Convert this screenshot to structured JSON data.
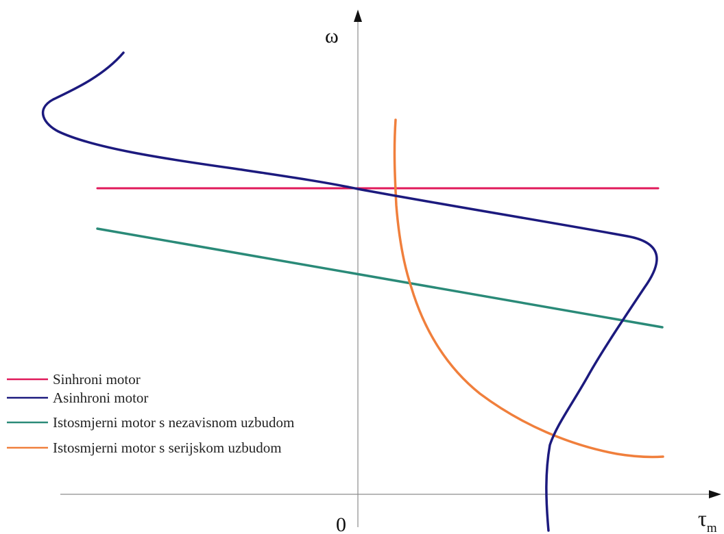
{
  "axes": {
    "y_label": "ω",
    "x_label_main": "τ",
    "x_label_sub": "m",
    "origin_label": "0"
  },
  "legend": [
    {
      "label": "Sinhroni motor",
      "color": "#e0195a"
    },
    {
      "label": "Asinhroni motor",
      "color": "#1c1a7e"
    },
    {
      "label": "Istosmjerni motor s nezavisnom uzbudom",
      "color": "#2a8a78"
    },
    {
      "label": "Istosmjerni motor s serijskom uzbudom",
      "color": "#f07f3c"
    }
  ],
  "colors": {
    "axis": "#8c8c8c",
    "synchronous": "#e0195a",
    "asynchronous": "#1c1a7e",
    "dc_separately_excited": "#2a8a78",
    "dc_series": "#f07f3c"
  }
}
